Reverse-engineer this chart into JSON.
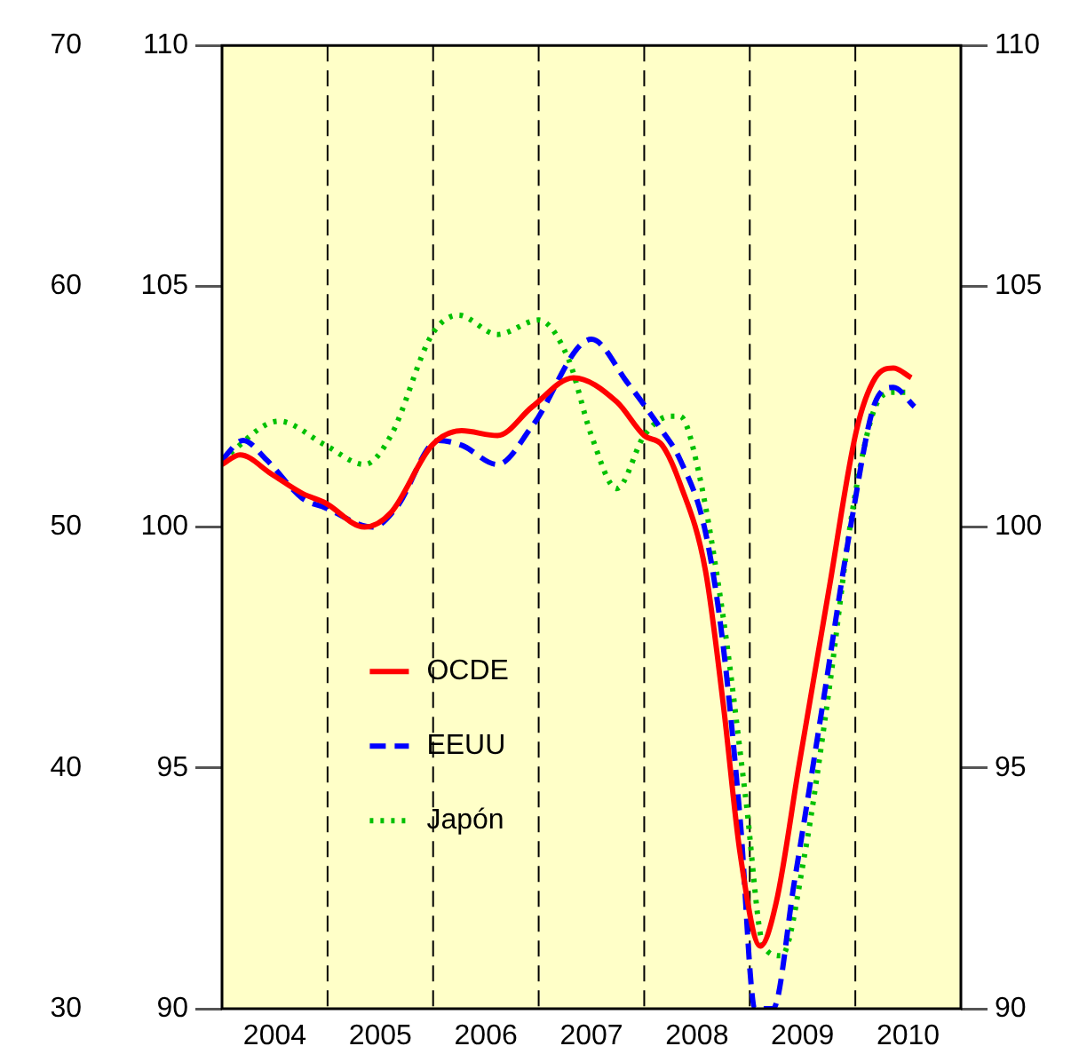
{
  "chart_data": {
    "type": "line",
    "xlim": [
      2004,
      2011
    ],
    "xticks": [
      {
        "value": 2004.5,
        "label": "2004"
      },
      {
        "value": 2005.5,
        "label": "2005"
      },
      {
        "value": 2006.5,
        "label": "2006"
      },
      {
        "value": 2007.5,
        "label": "2007"
      },
      {
        "value": 2008.5,
        "label": "2008"
      },
      {
        "value": 2009.5,
        "label": "2009"
      },
      {
        "value": 2010.5,
        "label": "2010"
      }
    ],
    "ylim": [
      90,
      110
    ],
    "yticks": [
      90,
      95,
      100,
      105,
      110
    ],
    "y2lim": [
      90,
      110
    ],
    "y2ticks": [
      90,
      95,
      100,
      105,
      110
    ],
    "y3lim": [
      30,
      70
    ],
    "y3ticks": [
      30,
      40,
      50,
      60,
      70
    ],
    "grid": false,
    "legend": "left",
    "marker": "none",
    "ref_lines": [
      {
        "axis": "x",
        "value": 2005,
        "line_style": "dashed",
        "color": "#000000"
      },
      {
        "axis": "x",
        "value": 2006,
        "line_style": "dashed",
        "color": "#000000"
      },
      {
        "axis": "x",
        "value": 2007,
        "line_style": "dashed",
        "color": "#000000"
      },
      {
        "axis": "x",
        "value": 2008,
        "line_style": "dashed",
        "color": "#000000"
      },
      {
        "axis": "x",
        "value": 2009,
        "line_style": "dashed",
        "color": "#000000"
      },
      {
        "axis": "x",
        "value": 2010,
        "line_style": "dashed",
        "color": "#000000"
      }
    ],
    "series": [
      {
        "name": "OCDE",
        "color": "#ff0000",
        "line_style": "solid",
        "x": [
          2004.0,
          2004.17,
          2004.47,
          2004.76,
          2004.98,
          2005.35,
          2005.6,
          2005.99,
          2006.27,
          2006.61,
          2006.94,
          2007.33,
          2007.74,
          2008.0,
          2008.17,
          2008.34,
          2008.58,
          2008.75,
          2008.91,
          2009.1,
          2009.25,
          2009.47,
          2009.75,
          2010.01,
          2010.19,
          2010.36,
          2010.53
        ],
        "values": [
          101.3,
          101.5,
          101.1,
          100.7,
          100.5,
          100.0,
          100.3,
          101.7,
          102.0,
          101.9,
          102.5,
          103.1,
          102.6,
          101.9,
          101.7,
          100.9,
          99.1,
          96.3,
          93.2,
          91.3,
          92.2,
          95.1,
          98.7,
          102.0,
          103.1,
          103.3,
          103.1
        ]
      },
      {
        "name": "EEUU",
        "color": "#0000ff",
        "line_style": "dashed",
        "x": [
          2004.0,
          2004.2,
          2004.42,
          2004.76,
          2004.98,
          2005.43,
          2005.65,
          2006.05,
          2006.27,
          2006.61,
          2006.94,
          2007.5,
          2007.84,
          2008.17,
          2008.34,
          2008.58,
          2008.75,
          2008.91,
          2009.05,
          2009.22,
          2009.42,
          2009.69,
          2009.97,
          2010.19,
          2010.36,
          2010.56
        ],
        "values": [
          101.4,
          101.8,
          101.4,
          100.6,
          100.4,
          100.0,
          100.4,
          101.8,
          101.7,
          101.3,
          102.1,
          103.9,
          103.0,
          102.0,
          101.4,
          99.9,
          97.5,
          93.9,
          90.0,
          90.0,
          92.6,
          96.3,
          100.2,
          102.6,
          102.9,
          102.5
        ]
      },
      {
        "name": "Japón",
        "color": "#00c000",
        "line_style": "dotted",
        "x": [
          2004.0,
          2004.54,
          2004.98,
          2005.35,
          2005.6,
          2005.99,
          2006.24,
          2006.61,
          2007.0,
          2007.28,
          2007.5,
          2007.74,
          2008.0,
          2008.24,
          2008.34,
          2008.51,
          2008.75,
          2008.96,
          2009.13,
          2009.3,
          2009.52,
          2009.75,
          2009.97,
          2010.19,
          2010.36,
          2010.53
        ],
        "values": [
          101.4,
          102.2,
          101.7,
          101.3,
          101.9,
          104.0,
          104.4,
          104.0,
          104.3,
          103.5,
          101.9,
          100.8,
          101.9,
          102.3,
          102.3,
          101.2,
          98.1,
          94.4,
          91.3,
          91.1,
          93.2,
          96.6,
          100.3,
          102.5,
          102.8,
          102.8
        ]
      }
    ]
  }
}
